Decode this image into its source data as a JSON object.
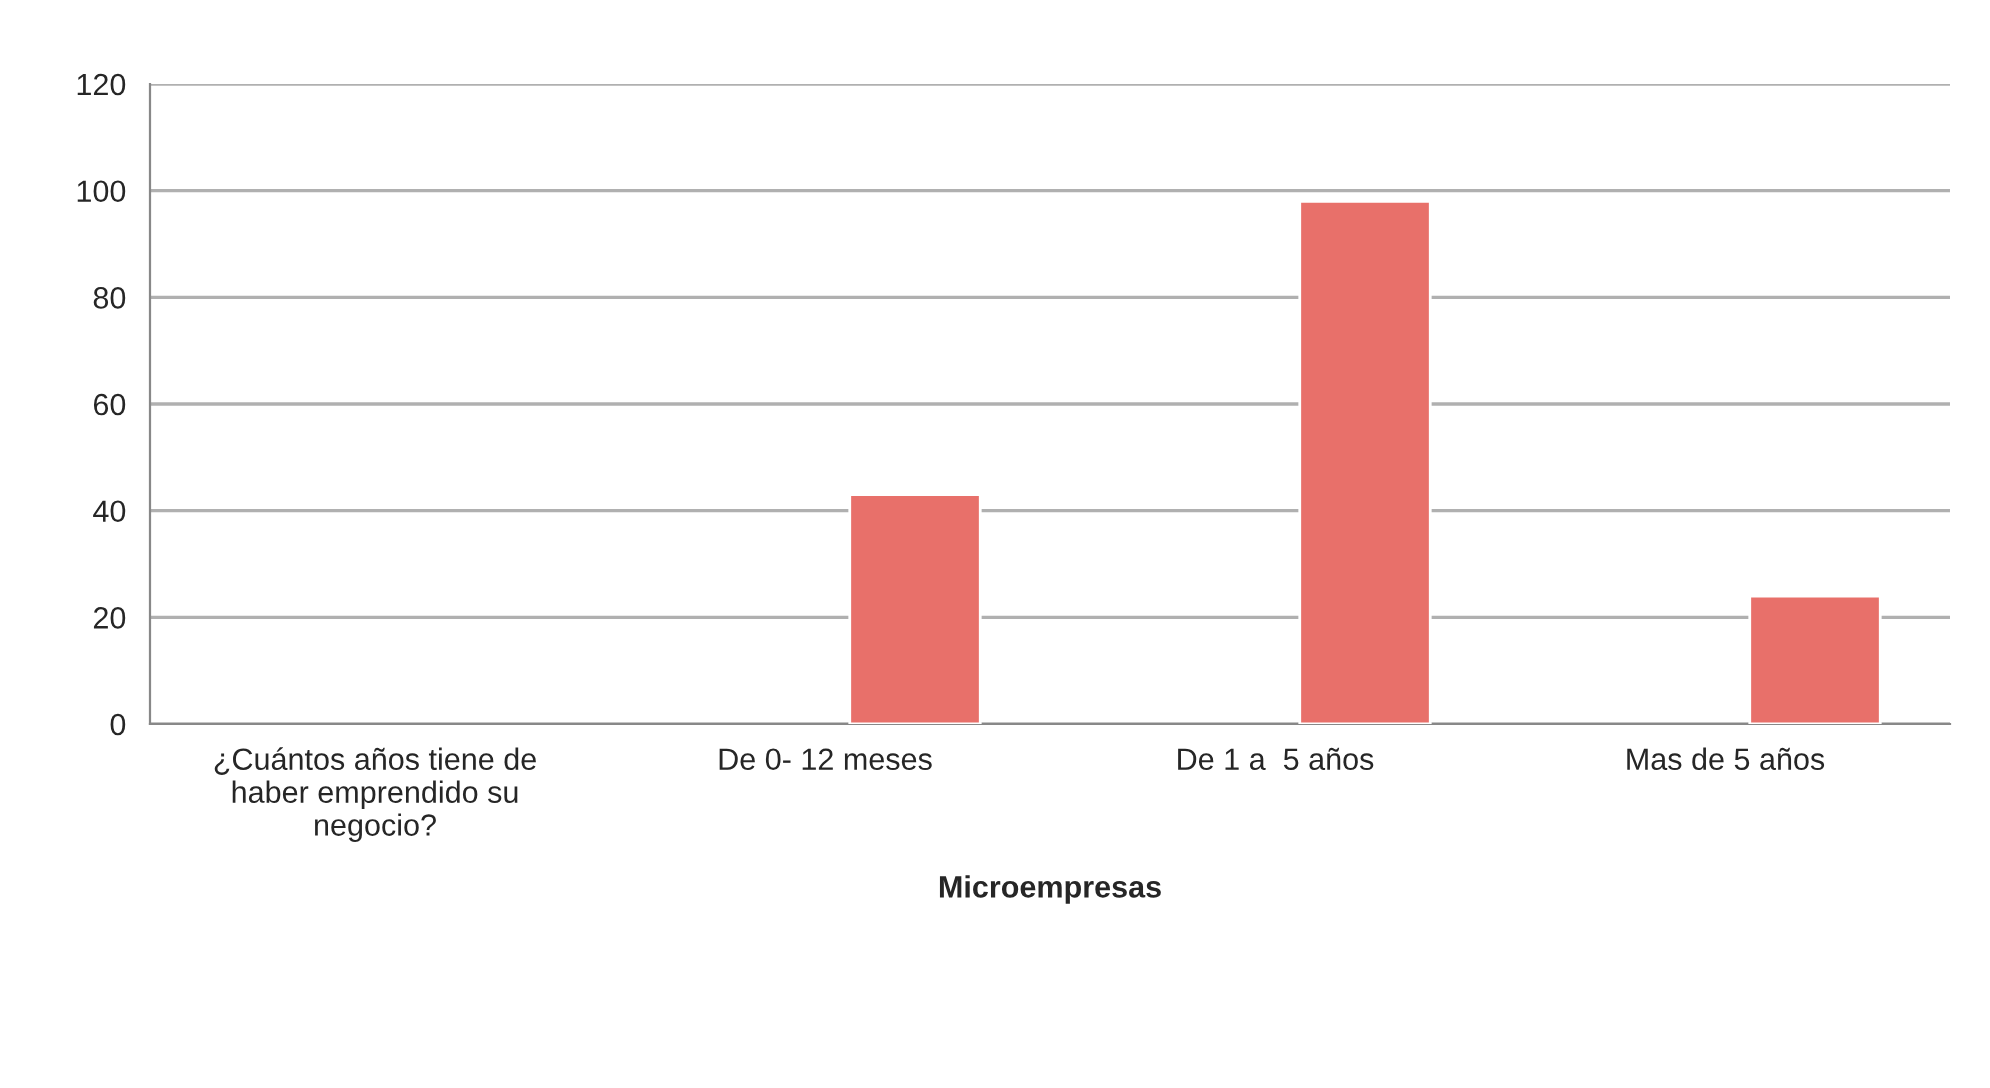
{
  "chart_data": {
    "type": "bar",
    "categories": [
      "¿Cuántos años tiene de\nhaber emprendido su\nnegocio?",
      "De 0- 12 meses",
      "De 1 a  5 años",
      "Mas de 5 años"
    ],
    "values": [
      null,
      43,
      98,
      24
    ],
    "color": "#e8706a",
    "xlabel": "Microempresas",
    "ylim": [
      0,
      120
    ],
    "yticks": [
      0,
      20,
      40,
      60,
      80,
      100,
      120
    ],
    "grid": "y"
  }
}
